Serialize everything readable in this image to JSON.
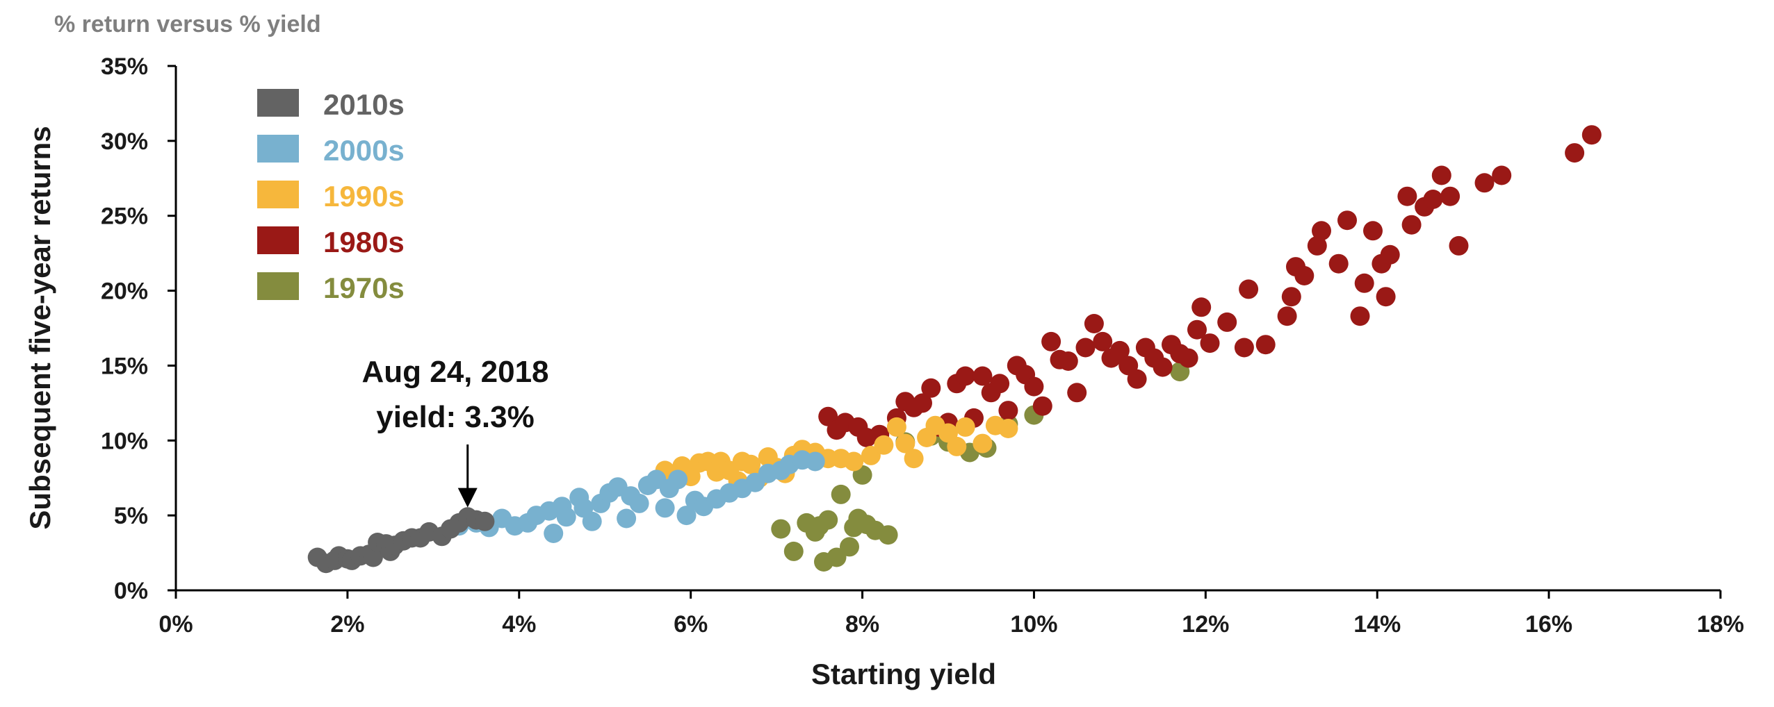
{
  "chart_data": {
    "type": "scatter",
    "title": "",
    "subtitle": "% return versus % yield",
    "xlabel": "Starting yield",
    "ylabel": "Subsequent five-year returns",
    "xlim": [
      0,
      18
    ],
    "ylim": [
      0,
      35
    ],
    "x_ticks": [
      "0%",
      "2%",
      "4%",
      "6%",
      "8%",
      "10%",
      "12%",
      "14%",
      "16%",
      "18%"
    ],
    "y_ticks": [
      "0%",
      "5%",
      "10%",
      "15%",
      "20%",
      "25%",
      "30%",
      "35%"
    ],
    "grid": false,
    "legend_position": "top-left",
    "annotation": {
      "lines": [
        "Aug 24, 2018",
        "yield: 3.3%"
      ],
      "x": 3.4,
      "y": 4.7
    },
    "series": [
      {
        "name": "2010s",
        "color": "#636363",
        "points": [
          [
            1.65,
            2.2
          ],
          [
            1.75,
            1.8
          ],
          [
            1.85,
            2.0
          ],
          [
            1.9,
            2.3
          ],
          [
            2.0,
            2.1
          ],
          [
            2.05,
            2.0
          ],
          [
            2.15,
            2.3
          ],
          [
            2.25,
            2.4
          ],
          [
            2.3,
            2.2
          ],
          [
            2.35,
            3.2
          ],
          [
            2.45,
            3.1
          ],
          [
            2.5,
            2.6
          ],
          [
            2.55,
            3.0
          ],
          [
            2.65,
            3.3
          ],
          [
            2.75,
            3.5
          ],
          [
            2.85,
            3.5
          ],
          [
            2.95,
            3.9
          ],
          [
            3.1,
            3.6
          ],
          [
            3.2,
            4.1
          ],
          [
            3.3,
            4.5
          ],
          [
            3.4,
            4.9
          ],
          [
            3.5,
            4.7
          ],
          [
            3.6,
            4.6
          ]
        ]
      },
      {
        "name": "2000s",
        "color": "#78b1cf",
        "points": [
          [
            3.3,
            4.3
          ],
          [
            3.5,
            4.5
          ],
          [
            3.65,
            4.2
          ],
          [
            3.8,
            4.8
          ],
          [
            3.95,
            4.3
          ],
          [
            4.1,
            4.5
          ],
          [
            4.2,
            5.0
          ],
          [
            4.35,
            5.3
          ],
          [
            4.4,
            3.8
          ],
          [
            4.5,
            5.6
          ],
          [
            4.55,
            4.9
          ],
          [
            4.7,
            6.2
          ],
          [
            4.75,
            5.5
          ],
          [
            4.85,
            4.6
          ],
          [
            4.95,
            5.8
          ],
          [
            5.05,
            6.5
          ],
          [
            5.15,
            6.9
          ],
          [
            5.25,
            4.8
          ],
          [
            5.3,
            6.3
          ],
          [
            5.4,
            5.8
          ],
          [
            5.5,
            7.0
          ],
          [
            5.6,
            7.4
          ],
          [
            5.7,
            5.5
          ],
          [
            5.75,
            6.8
          ],
          [
            5.85,
            7.4
          ],
          [
            5.95,
            5.0
          ],
          [
            6.05,
            6.0
          ],
          [
            6.15,
            5.6
          ],
          [
            6.3,
            6.1
          ],
          [
            6.45,
            6.5
          ],
          [
            6.6,
            6.8
          ],
          [
            6.75,
            7.2
          ],
          [
            6.9,
            7.8
          ],
          [
            7.05,
            8.0
          ],
          [
            7.15,
            8.4
          ],
          [
            7.3,
            8.7
          ],
          [
            7.45,
            8.6
          ]
        ]
      },
      {
        "name": "1990s",
        "color": "#f6b73c",
        "points": [
          [
            5.7,
            8.0
          ],
          [
            5.9,
            8.3
          ],
          [
            6.0,
            7.6
          ],
          [
            6.1,
            8.5
          ],
          [
            6.2,
            8.6
          ],
          [
            6.3,
            7.9
          ],
          [
            6.35,
            8.6
          ],
          [
            6.45,
            8.0
          ],
          [
            6.55,
            7.3
          ],
          [
            6.6,
            8.6
          ],
          [
            6.7,
            8.4
          ],
          [
            6.8,
            7.5
          ],
          [
            6.9,
            8.9
          ],
          [
            7.0,
            8.2
          ],
          [
            7.1,
            7.8
          ],
          [
            7.2,
            9.0
          ],
          [
            7.3,
            9.4
          ],
          [
            7.45,
            9.2
          ],
          [
            7.6,
            8.8
          ],
          [
            7.75,
            8.8
          ],
          [
            7.9,
            8.6
          ],
          [
            8.1,
            9.0
          ],
          [
            8.25,
            9.7
          ],
          [
            8.4,
            10.9
          ],
          [
            8.5,
            9.8
          ],
          [
            8.6,
            8.8
          ],
          [
            8.75,
            10.2
          ],
          [
            8.85,
            11.0
          ],
          [
            9.0,
            10.5
          ],
          [
            9.1,
            9.6
          ],
          [
            9.2,
            10.9
          ],
          [
            9.4,
            9.8
          ],
          [
            9.55,
            11.0
          ],
          [
            9.7,
            10.8
          ]
        ]
      },
      {
        "name": "1980s",
        "color": "#9a1916",
        "points": [
          [
            7.6,
            11.6
          ],
          [
            7.7,
            10.7
          ],
          [
            7.8,
            11.2
          ],
          [
            7.95,
            10.9
          ],
          [
            8.05,
            10.2
          ],
          [
            8.2,
            10.4
          ],
          [
            8.4,
            11.5
          ],
          [
            8.5,
            12.6
          ],
          [
            8.6,
            12.2
          ],
          [
            8.7,
            12.5
          ],
          [
            8.8,
            13.5
          ],
          [
            8.9,
            10.9
          ],
          [
            9.0,
            11.2
          ],
          [
            9.1,
            13.8
          ],
          [
            9.2,
            14.3
          ],
          [
            9.3,
            11.5
          ],
          [
            9.4,
            14.3
          ],
          [
            9.5,
            13.2
          ],
          [
            9.6,
            13.8
          ],
          [
            9.7,
            12.0
          ],
          [
            9.8,
            15.0
          ],
          [
            9.9,
            14.4
          ],
          [
            10.0,
            13.6
          ],
          [
            10.1,
            12.3
          ],
          [
            10.2,
            16.6
          ],
          [
            10.3,
            15.4
          ],
          [
            10.4,
            15.3
          ],
          [
            10.5,
            13.2
          ],
          [
            10.6,
            16.2
          ],
          [
            10.7,
            17.8
          ],
          [
            10.8,
            16.6
          ],
          [
            10.9,
            15.5
          ],
          [
            11.0,
            16.0
          ],
          [
            11.1,
            15.0
          ],
          [
            11.2,
            14.1
          ],
          [
            11.3,
            16.2
          ],
          [
            11.4,
            15.5
          ],
          [
            11.5,
            14.9
          ],
          [
            11.6,
            16.4
          ],
          [
            11.7,
            15.8
          ],
          [
            11.8,
            15.5
          ],
          [
            11.9,
            17.4
          ],
          [
            11.95,
            18.9
          ],
          [
            12.05,
            16.5
          ],
          [
            12.25,
            17.9
          ],
          [
            12.45,
            16.2
          ],
          [
            12.5,
            20.1
          ],
          [
            12.7,
            16.4
          ],
          [
            12.95,
            18.3
          ],
          [
            13.0,
            19.6
          ],
          [
            13.05,
            21.6
          ],
          [
            13.15,
            21.0
          ],
          [
            13.3,
            23.0
          ],
          [
            13.35,
            24.0
          ],
          [
            13.55,
            21.8
          ],
          [
            13.65,
            24.7
          ],
          [
            13.8,
            18.3
          ],
          [
            13.85,
            20.5
          ],
          [
            13.95,
            24.0
          ],
          [
            14.05,
            21.8
          ],
          [
            14.1,
            19.6
          ],
          [
            14.15,
            22.4
          ],
          [
            14.35,
            26.3
          ],
          [
            14.4,
            24.4
          ],
          [
            14.55,
            25.6
          ],
          [
            14.65,
            26.1
          ],
          [
            14.75,
            27.7
          ],
          [
            14.85,
            26.3
          ],
          [
            14.95,
            23.0
          ],
          [
            15.25,
            27.2
          ],
          [
            15.45,
            27.7
          ],
          [
            16.3,
            29.2
          ],
          [
            16.5,
            30.4
          ]
        ]
      },
      {
        "name": "1970s",
        "color": "#848c3e",
        "points": [
          [
            7.05,
            4.1
          ],
          [
            7.2,
            2.6
          ],
          [
            7.35,
            4.5
          ],
          [
            7.45,
            3.9
          ],
          [
            7.5,
            4.3
          ],
          [
            7.55,
            1.9
          ],
          [
            7.6,
            4.7
          ],
          [
            7.7,
            2.2
          ],
          [
            7.75,
            6.4
          ],
          [
            7.85,
            2.9
          ],
          [
            7.9,
            4.2
          ],
          [
            7.95,
            4.8
          ],
          [
            8.0,
            7.7
          ],
          [
            8.05,
            4.4
          ],
          [
            8.15,
            4.0
          ],
          [
            8.3,
            3.7
          ],
          [
            8.5,
            9.9
          ],
          [
            8.8,
            10.3
          ],
          [
            9.0,
            9.9
          ],
          [
            9.25,
            9.2
          ],
          [
            9.45,
            9.5
          ],
          [
            9.7,
            11.1
          ],
          [
            10.0,
            11.7
          ],
          [
            11.7,
            14.6
          ]
        ]
      }
    ]
  }
}
